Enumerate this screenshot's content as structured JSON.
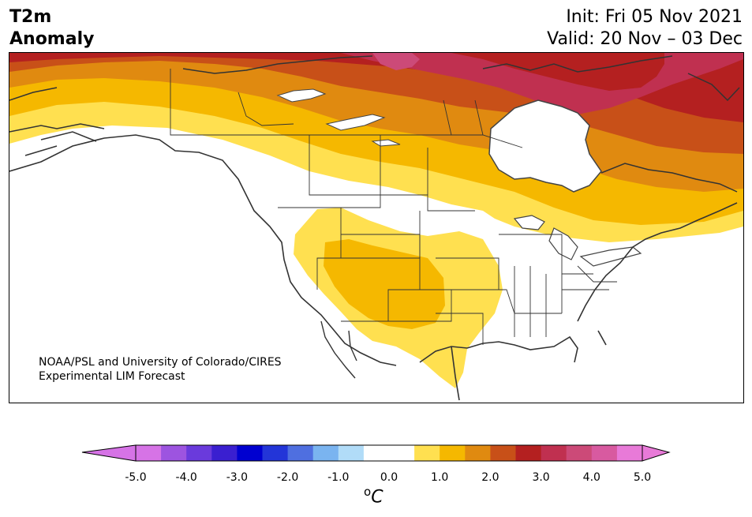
{
  "title": {
    "line1": "T2m",
    "line2": "Anomaly",
    "init": "Init: Fri 05 Nov 2021",
    "valid": "Valid: 20 Nov – 03 Dec"
  },
  "credit": {
    "line1": "NOAA/PSL and University of Colorado/CIRES",
    "line2": "Experimental LIM Forecast"
  },
  "colorbar": {
    "unit_base": "C",
    "unit_super": "o",
    "min": -5.0,
    "max": 5.0,
    "ticks": [
      "-5.0",
      "-4.0",
      "-3.0",
      "-2.0",
      "-1.0",
      "0.0",
      "1.0",
      "2.0",
      "3.0",
      "4.0",
      "5.0"
    ],
    "colors": [
      "#d673e6",
      "#9d54e0",
      "#6a3adc",
      "#3a1fd0",
      "#0000d0",
      "#2335d8",
      "#4f6fe0",
      "#7ab4f0",
      "#b1dcf8",
      "#ffffff",
      "#ffffff",
      "#ffe050",
      "#f5b800",
      "#e08a10",
      "#c85018",
      "#b42020",
      "#c03050",
      "#cc4a78",
      "#d85aa0",
      "#e87ad8"
    ],
    "under_color": "#d673e6",
    "over_color": "#e87ad8"
  },
  "map": {
    "region": "North America",
    "variable": "2m temperature anomaly",
    "colors": {
      "c1": "#ffe050",
      "c15": "#f5b800",
      "c2": "#e08a10",
      "c25": "#c85018",
      "c3": "#b42020",
      "c35": "#c03050",
      "c4": "#cc4a78"
    }
  }
}
